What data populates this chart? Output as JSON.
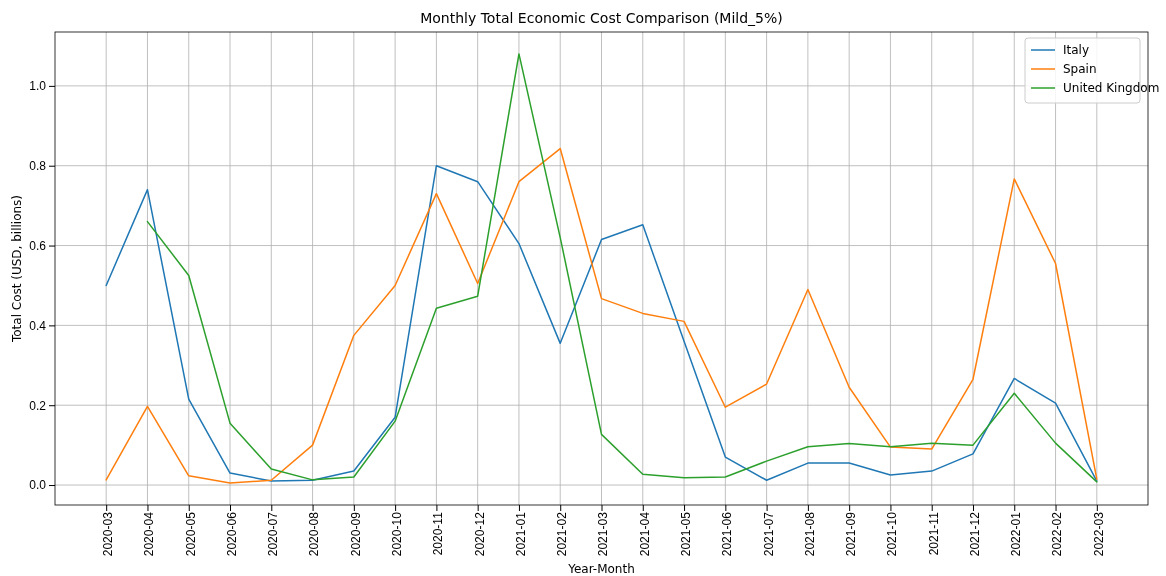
{
  "chart_data": {
    "type": "line",
    "title": "Monthly Total Economic Cost Comparison (Mild_5%)",
    "xlabel": "Year-Month",
    "ylabel": "Total Cost (USD, billions)",
    "categories": [
      "2020-03",
      "2020-04",
      "2020-05",
      "2020-06",
      "2020-07",
      "2020-08",
      "2020-09",
      "2020-10",
      "2020-11",
      "2020-12",
      "2021-01",
      "2021-02",
      "2021-03",
      "2021-04",
      "2021-05",
      "2021-06",
      "2021-07",
      "2021-08",
      "2021-09",
      "2021-10",
      "2021-11",
      "2021-12",
      "2022-01",
      "2022-02",
      "2022-03"
    ],
    "series": [
      {
        "name": "Italy",
        "color": "#1f77b4",
        "values": [
          0.5,
          0.74,
          0.215,
          0.03,
          0.01,
          0.012,
          0.035,
          0.17,
          0.8,
          0.76,
          0.605,
          0.355,
          0.615,
          0.652,
          0.36,
          0.07,
          0.012,
          0.055,
          0.055,
          0.025,
          0.035,
          0.078,
          0.267,
          0.205,
          0.01
        ]
      },
      {
        "name": "Spain",
        "color": "#ff7f0e",
        "values": [
          0.013,
          0.197,
          0.023,
          0.005,
          0.012,
          0.1,
          0.375,
          0.5,
          0.73,
          0.505,
          0.76,
          0.843,
          0.467,
          0.43,
          0.41,
          0.195,
          0.253,
          0.49,
          0.245,
          0.095,
          0.09,
          0.265,
          0.767,
          0.555,
          0.015
        ]
      },
      {
        "name": "United Kingdom",
        "color": "#2ca02c",
        "values": [
          null,
          0.66,
          0.525,
          0.155,
          0.04,
          0.013,
          0.02,
          0.16,
          0.443,
          0.473,
          1.08,
          0.62,
          0.127,
          0.027,
          0.018,
          0.02,
          0.06,
          0.096,
          0.104,
          0.096,
          0.105,
          0.1,
          0.23,
          0.105,
          0.008
        ]
      }
    ],
    "ylim": [
      -0.05,
      1.135
    ],
    "yticks": [
      {
        "value": 0,
        "label": "0.0"
      },
      {
        "value": 0.2,
        "label": "0.2"
      },
      {
        "value": 0.4,
        "label": "0.4"
      },
      {
        "value": 0.6,
        "label": "0.6"
      },
      {
        "value": 0.8,
        "label": "0.8"
      },
      {
        "value": 1,
        "label": "1.0"
      }
    ],
    "grid": true,
    "legend": "top right"
  }
}
